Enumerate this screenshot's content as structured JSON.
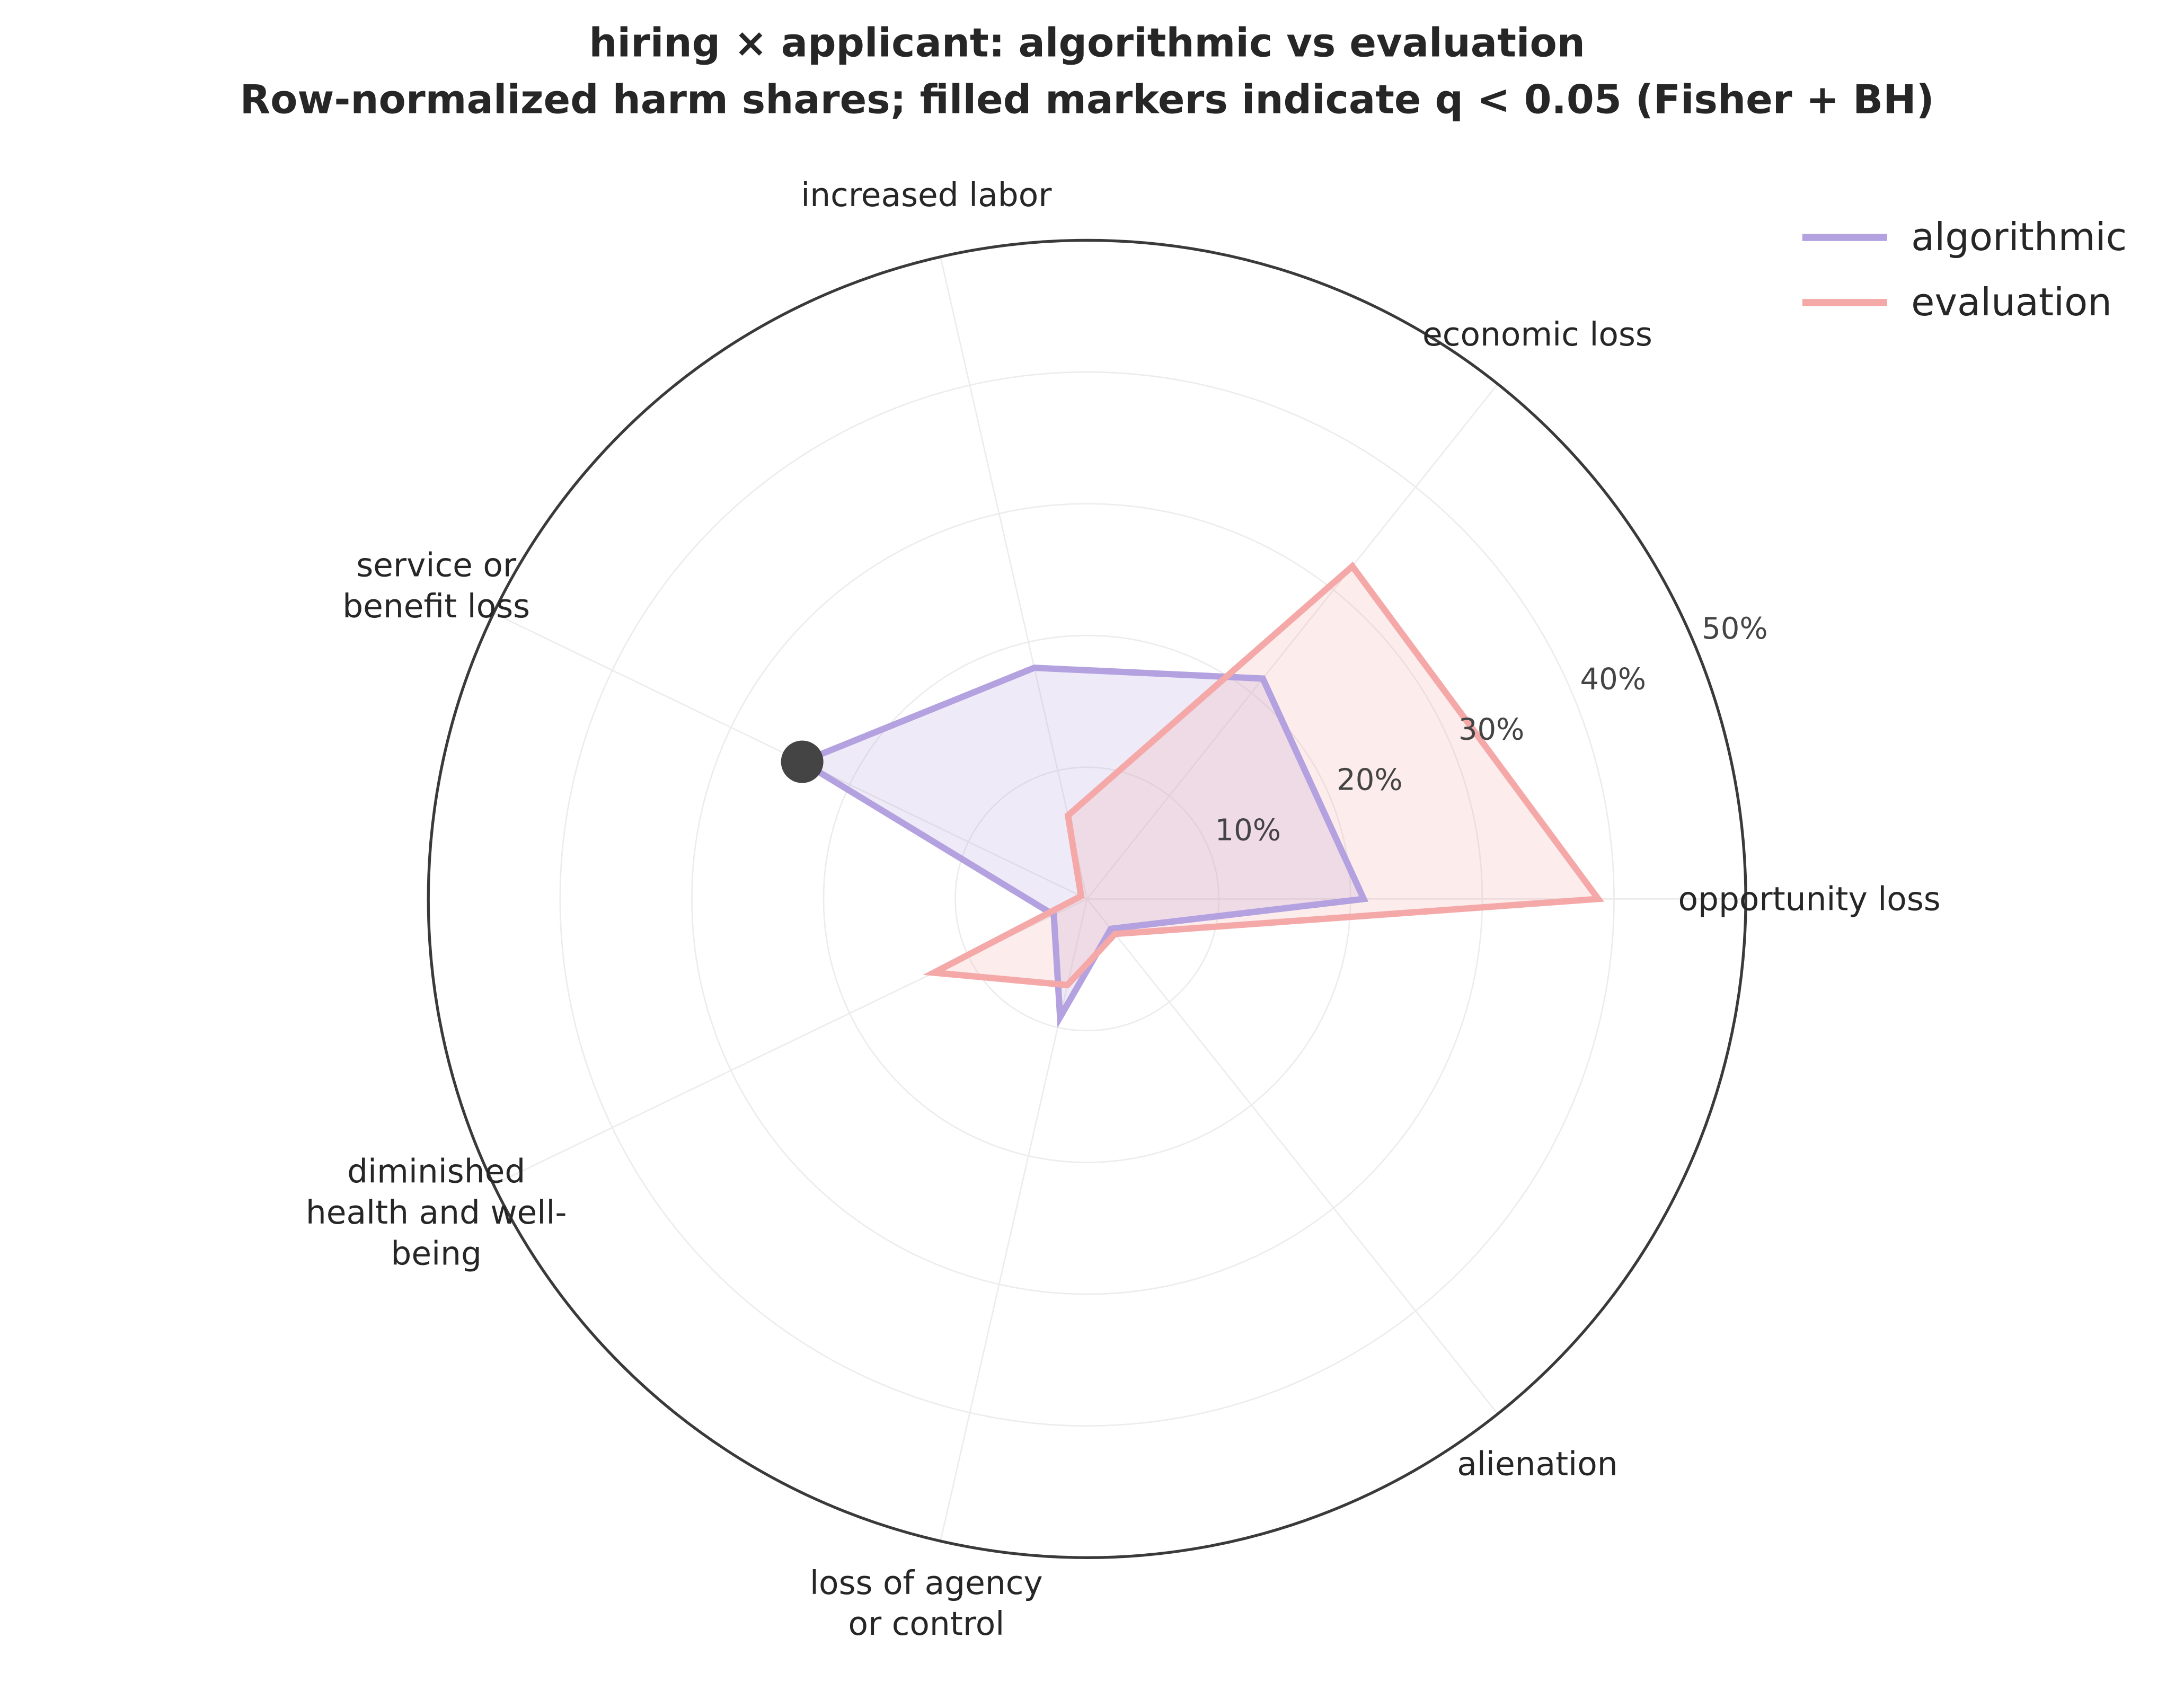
{
  "chart_data": {
    "type": "radar",
    "title": "hiring × applicant: algorithmic vs evaluation",
    "subtitle": "Row-normalized harm shares; filled markers indicate q < 0.05 (Fisher + BH)",
    "categories": [
      "opportunity loss",
      "economic loss",
      "increased labor",
      "service or\nbenefit loss",
      "diminished\nhealth and well-\nbeing",
      "loss of agency\nor control",
      "alienation"
    ],
    "ylim": [
      0,
      50
    ],
    "yticks": [
      {
        "value": 10,
        "label": "10%"
      },
      {
        "value": 20,
        "label": "20%"
      },
      {
        "value": 30,
        "label": "30%"
      },
      {
        "value": 40,
        "label": "40%"
      },
      {
        "value": 50,
        "label": "50%"
      }
    ],
    "grid": true,
    "legend": "upper right",
    "series": [
      {
        "name": "algorithmic",
        "color": "#b3a1e0",
        "values": [
          21,
          21.4,
          18,
          24,
          2.8,
          9.2,
          2.9
        ],
        "significant": [
          false,
          false,
          false,
          true,
          false,
          false,
          false
        ]
      },
      {
        "name": "evaluation",
        "color": "#f5a8a8",
        "values": [
          38.8,
          32.3,
          6.5,
          0.5,
          12.9,
          6.7,
          3.4
        ],
        "significant": [
          false,
          false,
          false,
          false,
          false,
          false,
          false
        ]
      }
    ]
  }
}
